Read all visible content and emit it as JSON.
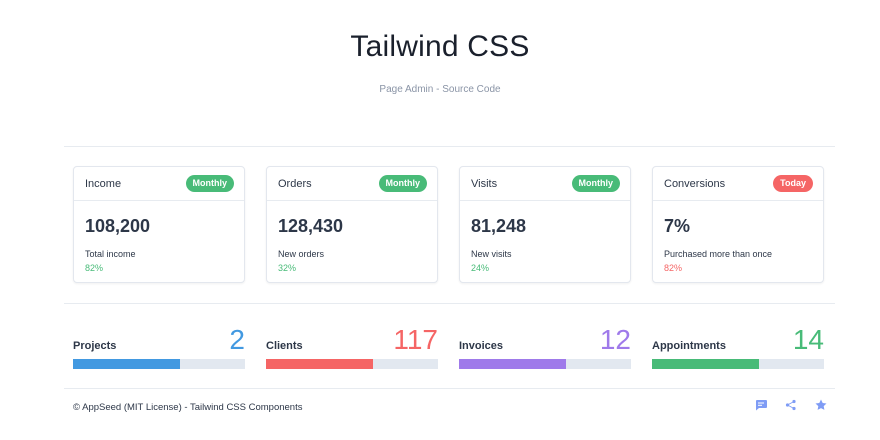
{
  "header": {
    "title": "Tailwind CSS",
    "subtitle": "Page Admin - Source Code"
  },
  "cards": [
    {
      "title": "Income",
      "badge": "Monthly",
      "badge_color": "#48bb78",
      "value": "108,200",
      "desc": "Total income",
      "pct": "82%",
      "pct_color": "#48bb78"
    },
    {
      "title": "Orders",
      "badge": "Monthly",
      "badge_color": "#48bb78",
      "value": "128,430",
      "desc": "New orders",
      "pct": "32%",
      "pct_color": "#48bb78"
    },
    {
      "title": "Visits",
      "badge": "Monthly",
      "badge_color": "#48bb78",
      "value": "81,248",
      "desc": "New visits",
      "pct": "24%",
      "pct_color": "#48bb78"
    },
    {
      "title": "Conversions",
      "badge": "Today",
      "badge_color": "#f56565",
      "value": "7%",
      "desc": "Purchased more than once",
      "pct": "82%",
      "pct_color": "#f56565"
    }
  ],
  "stats": [
    {
      "label": "Projects",
      "value": "2",
      "color": "#4299e1",
      "progress": 0.62
    },
    {
      "label": "Clients",
      "value": "117",
      "color": "#f56565",
      "progress": 0.62
    },
    {
      "label": "Invoices",
      "value": "12",
      "color": "#9f7aea",
      "progress": 0.62
    },
    {
      "label": "Appointments",
      "value": "14",
      "color": "#48bb78",
      "progress": 0.62
    }
  ],
  "footer": {
    "text": "© AppSeed (MIT License) - Tailwind CSS Components",
    "icons": [
      "chat-icon",
      "share-icon",
      "star-icon"
    ],
    "icon_color": "#7f9cf5"
  }
}
